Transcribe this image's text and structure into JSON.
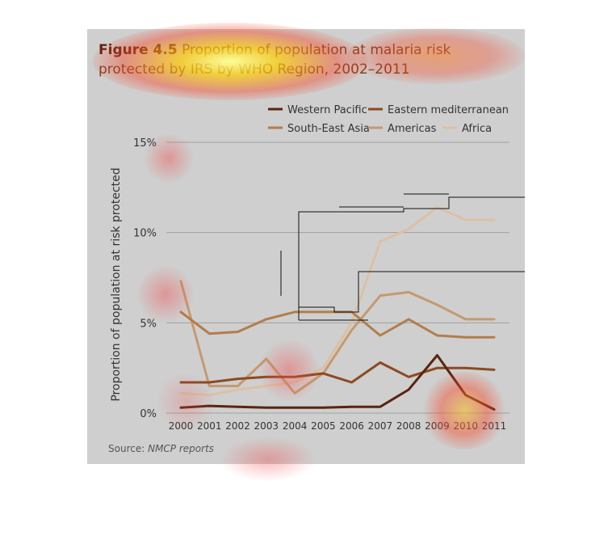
{
  "figure": {
    "number": "Figure 4.5",
    "title": "Proportion of population at malaria risk protected by IRS by WHO Region, 2002–2011",
    "source_label": "Source:",
    "source_text": "NMCP reports"
  },
  "colors": {
    "panel": "#cfcfcf",
    "gridline": "#a0a0a0",
    "western_pacific": "#5a2410",
    "eastern_mediterranean": "#8c4a20",
    "south_east_asia": "#b27d4c",
    "americas": "#c49a70",
    "africa": "#dcc0a4"
  },
  "chart_data": {
    "type": "line",
    "title": "Proportion of population at malaria risk protected by IRS by WHO Region, 2002–2011",
    "xlabel": "",
    "ylabel": "Proportion of population at risk protected",
    "x": [
      "2000",
      "2001",
      "2002",
      "2003",
      "2004",
      "2005",
      "2006",
      "2007",
      "2008",
      "2009",
      "2010",
      "2011"
    ],
    "ylim": [
      0,
      15
    ],
    "yticks": [
      0,
      5,
      10,
      15
    ],
    "ytick_labels": [
      "0%",
      "5%",
      "10%",
      "15%"
    ],
    "grid": true,
    "legend_position": "top-right",
    "series": [
      {
        "name": "Western Pacific",
        "values": [
          0.3,
          0.4,
          0.35,
          0.3,
          0.3,
          0.3,
          0.35,
          0.35,
          1.3,
          3.2,
          1.0,
          0.2
        ]
      },
      {
        "name": "Eastern mediterranean",
        "values": [
          1.7,
          1.7,
          1.9,
          2.0,
          2.0,
          2.2,
          1.7,
          2.8,
          2.0,
          2.5,
          2.5,
          2.4
        ]
      },
      {
        "name": "South-East Asia",
        "values": [
          5.6,
          4.4,
          4.5,
          5.2,
          5.6,
          5.6,
          5.6,
          4.3,
          5.2,
          4.3,
          4.2,
          4.2
        ]
      },
      {
        "name": "Americas",
        "values": [
          7.3,
          1.5,
          1.5,
          3.0,
          1.1,
          2.2,
          4.6,
          6.5,
          6.7,
          6.0,
          5.2,
          5.2
        ]
      },
      {
        "name": "Africa",
        "values": [
          1.1,
          1.0,
          1.3,
          1.5,
          1.7,
          2.5,
          5.0,
          9.5,
          10.2,
          11.4,
          10.7,
          10.7
        ]
      }
    ]
  }
}
